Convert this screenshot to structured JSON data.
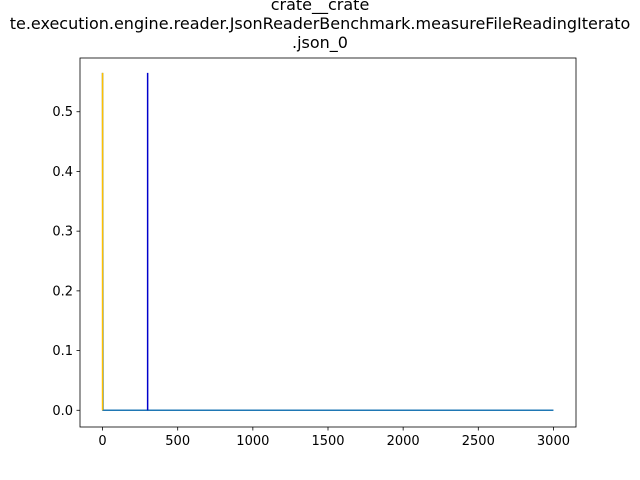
{
  "chart_data": {
    "type": "line",
    "title_lines": [
      "crate__crate",
      "te.execution.engine.reader.JsonReaderBenchmark.measureFileReadingIterato",
      ".json_0"
    ],
    "xlabel": "",
    "ylabel": "",
    "xlim": [
      -150,
      3150
    ],
    "ylim": [
      -0.028,
      0.59
    ],
    "x_ticks": [
      0,
      500,
      1000,
      1500,
      2000,
      2500,
      3000
    ],
    "y_ticks": [
      0.0,
      0.1,
      0.2,
      0.3,
      0.4,
      0.5
    ],
    "x_tick_labels": [
      "0",
      "500",
      "1000",
      "1500",
      "2000",
      "2500",
      "3000"
    ],
    "y_tick_labels": [
      "0.0",
      "0.1",
      "0.2",
      "0.3",
      "0.4",
      "0.5"
    ],
    "grid": false,
    "series": [
      {
        "color": "#1f77b4",
        "points": [
          [
            0,
            0.565
          ],
          [
            3,
            0.0
          ],
          [
            3000,
            0.0
          ]
        ]
      }
    ],
    "vertical_lines": [
      {
        "x": 0,
        "y_range": [
          0,
          0.565
        ],
        "color": "#ffbf00"
      },
      {
        "x": 300,
        "y_range": [
          0,
          0.565
        ],
        "color": "#0000cc"
      }
    ]
  }
}
